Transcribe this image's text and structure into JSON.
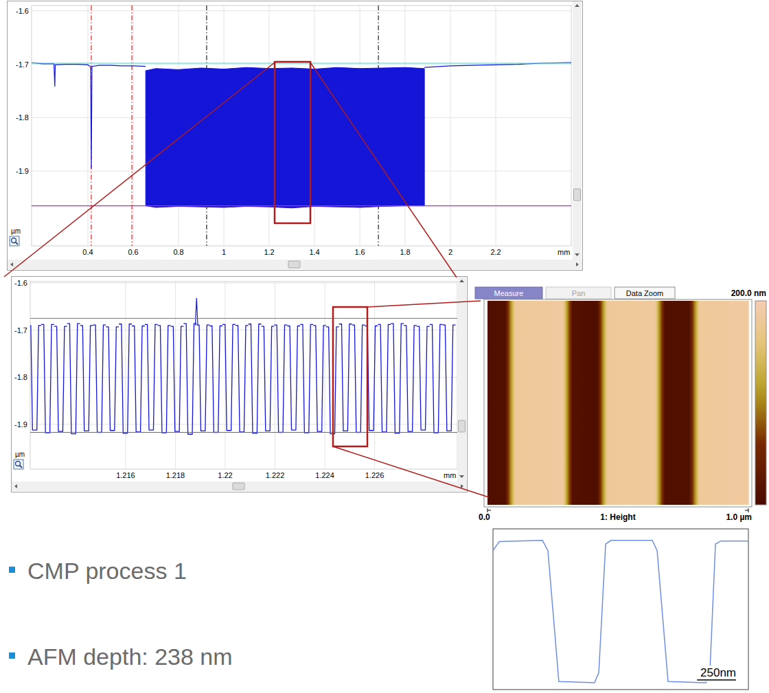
{
  "chart_data": [
    {
      "type": "line",
      "x_label": "mm",
      "y_label": "µm",
      "xlim": [
        0.1515,
        2.533
      ],
      "ylim": [
        -2.04,
        -1.59
      ],
      "xticks": [
        0.4,
        0.6,
        0.8,
        1,
        1.2,
        1.4,
        1.6,
        1.8,
        2,
        2.2
      ],
      "yticks": [
        -1.9,
        -1.8,
        -1.7,
        -1.6
      ],
      "grid": true,
      "hlines": [
        {
          "value": -1.698,
          "color": "#40d8d8"
        },
        {
          "value": -1.965,
          "color": "#d020d0"
        }
      ],
      "vlines": [
        {
          "value": 0.415,
          "color": "#e02020",
          "line_style": "dashdot"
        },
        {
          "value": 0.594,
          "color": "#e02020",
          "line_style": "dashdot"
        },
        {
          "value": 0.924,
          "color": "#202020",
          "line_style": "dashdot"
        },
        {
          "value": 1.682,
          "color": "#202020",
          "line_style": "dashdot"
        }
      ],
      "series": [
        {
          "type": "line",
          "color": "#1515d8",
          "x": [
            0.1515,
            0.2,
            0.25,
            0.254,
            0.256,
            0.3,
            0.35,
            0.4,
            0.412,
            0.415,
            0.418,
            0.45,
            0.5,
            0.55,
            0.6,
            0.655
          ],
          "values": [
            -1.697,
            -1.699,
            -1.699,
            -1.742,
            -1.701,
            -1.7,
            -1.7,
            -1.701,
            -1.705,
            -1.895,
            -1.704,
            -1.702,
            -1.702,
            -1.703,
            -1.703,
            -1.704
          ]
        },
        {
          "type": "area",
          "color": "#1515d8",
          "x": [
            0.655,
            0.7,
            0.8,
            0.9,
            1.0,
            1.1,
            1.2,
            1.3,
            1.4,
            1.5,
            1.6,
            1.7,
            1.8,
            1.885
          ],
          "values": [
            -1.712,
            -1.708,
            -1.71,
            -1.707,
            -1.709,
            -1.706,
            -1.708,
            -1.707,
            -1.709,
            -1.706,
            -1.708,
            -1.707,
            -1.706,
            -1.708
          ],
          "lower": [
            -1.965,
            -1.968,
            -1.966,
            -1.967,
            -1.968,
            -1.966,
            -1.967,
            -1.969,
            -1.966,
            -1.967,
            -1.968,
            -1.966,
            -1.965,
            -1.965
          ]
        },
        {
          "type": "line",
          "color": "#1515d8",
          "x": [
            1.885,
            2.0,
            2.1,
            2.2,
            2.3,
            2.4,
            2.533
          ],
          "values": [
            -1.706,
            -1.703,
            -1.702,
            -1.701,
            -1.7,
            -1.698,
            -1.697
          ]
        }
      ]
    },
    {
      "type": "line",
      "x_label": "mm",
      "y_label": "µm",
      "xlim": [
        1.21217,
        1.22932
      ],
      "ylim": [
        -1.995,
        -1.597
      ],
      "xticks": [
        1.216,
        1.218,
        1.22,
        1.222,
        1.224,
        1.226
      ],
      "yticks": [
        -1.9,
        -1.8,
        -1.7,
        -1.6
      ],
      "grid": true,
      "hlines": [
        {
          "value": -1.675,
          "color": "#30b030"
        },
        {
          "value": -1.917,
          "color": "#d020d0"
        }
      ],
      "series": [
        {
          "type": "profile",
          "color": "#1515d8",
          "x": [
            1.21235,
            1.21287,
            1.21339,
            1.21391,
            1.21443,
            1.21495,
            1.21547,
            1.21599,
            1.21651,
            1.21703,
            1.21755,
            1.21807,
            1.21859,
            1.21911,
            1.21963,
            1.22015,
            1.22067,
            1.22119,
            1.22171,
            1.22223,
            1.22275,
            1.22327,
            1.22379,
            1.22431,
            1.22483,
            1.22535,
            1.22587,
            1.22639,
            1.22691,
            1.22743,
            1.22795,
            1.22847,
            1.22899
          ],
          "values": [
            -1.912,
            -1.918,
            -1.915,
            -1.92,
            -1.914,
            -1.917,
            -1.913,
            -1.919,
            -1.916,
            -1.912,
            -1.918,
            -1.915,
            -1.921,
            -1.914,
            -1.917,
            -1.913,
            -1.916,
            -1.919,
            -1.914,
            -1.917,
            -1.912,
            -1.918,
            -1.915,
            -1.92,
            -1.914,
            -1.917,
            -1.913,
            -1.916,
            -1.919,
            -1.915,
            -1.912,
            -1.918,
            -1.914
          ],
          "crests": [
            -1.69,
            -1.688,
            -1.692,
            -1.686,
            -1.69,
            -1.689,
            -1.693,
            -1.687,
            -1.691,
            -1.688,
            -1.69,
            -1.692,
            -1.686,
            -1.689,
            -1.691,
            -1.688,
            -1.69,
            -1.687,
            -1.692,
            -1.689,
            -1.691,
            -1.688,
            -1.69,
            -1.693,
            -1.687,
            -1.689,
            -1.691,
            -1.688,
            -1.686,
            -1.69,
            -1.692,
            -1.688,
            -1.689
          ]
        },
        {
          "type": "line",
          "color": "#1515d8",
          "x": [
            1.2188,
            1.21885,
            1.2189
          ],
          "values": [
            -1.69,
            -1.632,
            -1.69
          ]
        }
      ]
    },
    {
      "type": "heatmap",
      "title": "1: Height",
      "buttons": [
        "Measure",
        "Pan",
        "Data Zoom"
      ],
      "x": [
        0,
        0.068,
        0.105,
        0.289,
        0.326,
        0.421,
        0.458,
        0.642,
        0.679,
        0.774,
        0.811,
        1.0
      ],
      "values": [
        8,
        10,
        182,
        185,
        12,
        8,
        180,
        184,
        10,
        9,
        182,
        186
      ],
      "xlim": [
        0,
        1
      ],
      "xticks": [
        {
          "value": 0,
          "label": "0.0"
        },
        {
          "value": 1,
          "label": "1.0 µm"
        }
      ],
      "colorbar": {
        "range": [
          0,
          200
        ],
        "label": "200.0 nm"
      }
    },
    {
      "type": "line",
      "color": "#6f8fdf",
      "tick_labels": false,
      "x": [
        0,
        40,
        317,
        352,
        422,
        651,
        678,
        722,
        757,
        1021,
        1052,
        1122,
        1364,
        1390,
        1426,
        1461,
        1637
      ],
      "values": [
        221,
        236,
        238,
        221,
        2,
        0,
        17,
        232,
        238,
        238,
        221,
        2,
        0,
        17,
        232,
        237,
        237
      ],
      "xlim": [
        0,
        1637
      ],
      "ylim": [
        -8,
        255
      ],
      "scale_bar": {
        "value": 250,
        "label": "250nm"
      }
    }
  ],
  "bullets": [
    "CMP process 1",
    "AFM depth: 238 nm"
  ]
}
